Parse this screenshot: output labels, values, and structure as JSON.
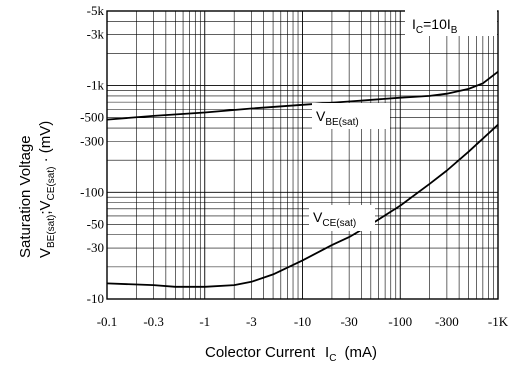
{
  "chart_data": {
    "type": "line",
    "scale": {
      "x": "log",
      "y": "log"
    },
    "xlabel": {
      "main": "Colector Current",
      "symbol": "I",
      "symbol_sub": "C",
      "unit": "(mA)"
    },
    "ylabel": {
      "line1": "Saturation Voltage",
      "line2_parts": [
        {
          "text": "V",
          "sub": "BE(sat)"
        },
        {
          "text": ";V",
          "sub": "CE(sat)"
        },
        {
          "text": " · (mV)"
        }
      ]
    },
    "condition": {
      "text": "I",
      "sub": "C",
      "rest": "=10I",
      "sub2": "B"
    },
    "xlim": [
      0.1,
      1000
    ],
    "ylim": [
      10,
      5000
    ],
    "x_ticks": [
      {
        "value": 0.1,
        "label": "-0.1"
      },
      {
        "value": 0.3,
        "label": "-0.3"
      },
      {
        "value": 1,
        "label": "-1"
      },
      {
        "value": 3,
        "label": "-3"
      },
      {
        "value": 10,
        "label": "-10"
      },
      {
        "value": 30,
        "label": "-30"
      },
      {
        "value": 100,
        "label": "-100"
      },
      {
        "value": 300,
        "label": "-300"
      },
      {
        "value": 1000,
        "label": "-1K"
      }
    ],
    "y_ticks": [
      {
        "value": 5000,
        "label": "-5k"
      },
      {
        "value": 3000,
        "label": "-3k"
      },
      {
        "value": 1000,
        "label": "-1k"
      },
      {
        "value": 500,
        "label": "-500"
      },
      {
        "value": 300,
        "label": "-300"
      },
      {
        "value": 100,
        "label": "-100"
      },
      {
        "value": 50,
        "label": "-50"
      },
      {
        "value": 30,
        "label": "-30"
      },
      {
        "value": 10,
        "label": "-10"
      }
    ],
    "grid": true,
    "series": [
      {
        "name": "V",
        "name_sub": "BE(sat)",
        "x": [
          0.1,
          0.3,
          1,
          3,
          10,
          30,
          100,
          200,
          300,
          500,
          700,
          1000
        ],
        "y": [
          480,
          520,
          560,
          610,
          660,
          710,
          770,
          800,
          840,
          930,
          1050,
          1350
        ]
      },
      {
        "name": "V",
        "name_sub": "CE(sat)",
        "x": [
          0.1,
          0.3,
          0.5,
          1,
          2,
          3,
          5,
          10,
          20,
          30,
          50,
          100,
          200,
          300,
          500,
          1000
        ],
        "y": [
          14,
          13.5,
          13,
          13,
          13.5,
          14.5,
          17,
          23,
          32,
          38,
          50,
          75,
          120,
          160,
          240,
          430
        ]
      }
    ]
  }
}
